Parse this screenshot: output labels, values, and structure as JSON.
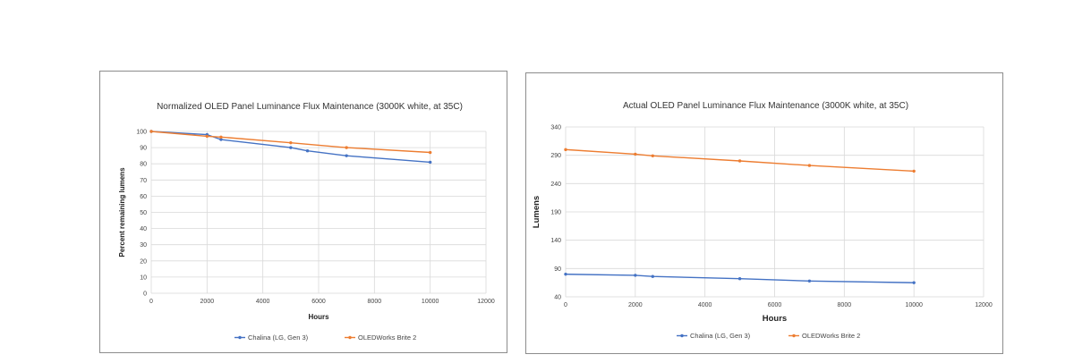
{
  "colors": {
    "series1": "#4472c4",
    "series2": "#ed7d31"
  },
  "chart_data": [
    {
      "type": "line",
      "title": "Normalized OLED Panel Luminance Flux Maintenance (3000K white, at 35C)",
      "xlabel": "Hours",
      "ylabel": "Percent remaining lumens",
      "xlim": [
        0,
        12000
      ],
      "ylim": [
        0,
        100
      ],
      "xticks": [
        0,
        2000,
        4000,
        6000,
        8000,
        10000,
        12000
      ],
      "yticks": [
        0,
        10,
        20,
        30,
        40,
        50,
        60,
        70,
        80,
        90,
        100
      ],
      "grid": true,
      "legend_position": "bottom",
      "series": [
        {
          "name": "Chalina (LG, Gen 3)",
          "x": [
            0,
            2000,
            2500,
            5000,
            5600,
            7000,
            10000
          ],
          "y": [
            100,
            98,
            95,
            90,
            88,
            85,
            81
          ]
        },
        {
          "name": "OLEDWorks Brite 2",
          "x": [
            0,
            2000,
            2500,
            5000,
            7000,
            10000
          ],
          "y": [
            100,
            97,
            96.5,
            93,
            90,
            87
          ]
        }
      ]
    },
    {
      "type": "line",
      "title": "Actual OLED Panel Luminance Flux Maintenance (3000K white, at 35C)",
      "xlabel": "Hours",
      "ylabel": "Lumens",
      "xlim": [
        0,
        12000
      ],
      "ylim": [
        40,
        340
      ],
      "xticks": [
        0,
        2000,
        4000,
        6000,
        8000,
        10000,
        12000
      ],
      "yticks": [
        40,
        90,
        140,
        190,
        240,
        290,
        340
      ],
      "grid": true,
      "legend_position": "bottom",
      "series": [
        {
          "name": "Chalina (LG, Gen 3)",
          "x": [
            0,
            2000,
            2500,
            5000,
            7000,
            10000
          ],
          "y": [
            80,
            78,
            76,
            72,
            68,
            65
          ]
        },
        {
          "name": "OLEDWorks Brite 2",
          "x": [
            0,
            2000,
            2500,
            5000,
            7000,
            10000
          ],
          "y": [
            300,
            292,
            289,
            280,
            272,
            262
          ]
        }
      ]
    }
  ]
}
